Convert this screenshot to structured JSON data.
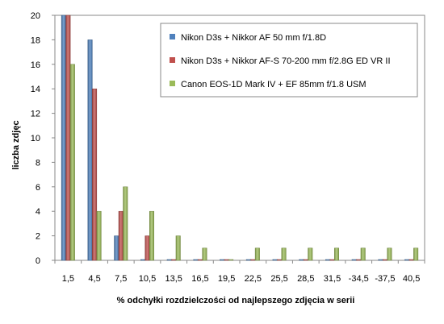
{
  "chart_data": {
    "type": "bar",
    "xlabel": "% odchyłki  rozdzielczości  od najlepszego  zdjęcia  w serii",
    "ylabel": "liczba zdjęc",
    "ylim": [
      0,
      20
    ],
    "yticks": [
      "0",
      "2",
      "4",
      "6",
      "8",
      "10",
      "12",
      "14",
      "16",
      "18",
      "20"
    ],
    "categories": [
      "1,5",
      "4,5",
      "7,5",
      "10,5",
      "13,5",
      "16,5",
      "19,5",
      "22,5",
      "25,5",
      "28,5",
      "31,5",
      "-34,5",
      "-37,5",
      "40,5"
    ],
    "grid": false,
    "legend_position": "top-right",
    "series": [
      {
        "name": "Nikon D3s + Nikkor AF 50 mm f/1.8D",
        "color": "#4F81BD",
        "values": [
          20,
          18,
          2,
          0,
          0,
          0,
          0,
          0,
          0,
          0,
          0,
          0,
          0,
          0
        ]
      },
      {
        "name": "Nikon D3s + Nikkor AF-S 70-200 mm f/2.8G ED VR II",
        "color": "#C0504D",
        "values": [
          20,
          14,
          4,
          2,
          0,
          0,
          0,
          0,
          0,
          0,
          0,
          0,
          0,
          0
        ]
      },
      {
        "name": "Canon EOS-1D Mark IV + EF 85mm f/1.8 USM",
        "color": "#9BBB59",
        "values": [
          16,
          4,
          6,
          4,
          2,
          1,
          0,
          1,
          1,
          1,
          1,
          1,
          1,
          1
        ]
      }
    ]
  }
}
